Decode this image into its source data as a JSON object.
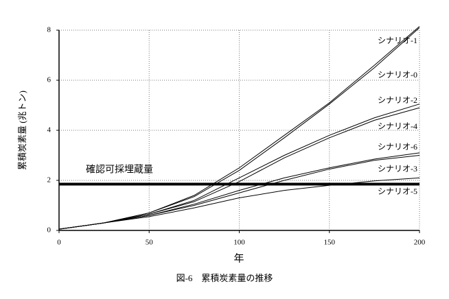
{
  "chart_data": {
    "type": "line",
    "caption": "図-6　累積炭素量の推移",
    "x_label": "年",
    "y_label": "累積炭素量 (兆トン)",
    "x": [
      0,
      25,
      50,
      75,
      100,
      125,
      150,
      175,
      200
    ],
    "series": [
      {
        "name": "シナリオ-1",
        "color": "#000000",
        "values": [
          0.05,
          0.3,
          0.7,
          1.4,
          2.5,
          3.8,
          5.1,
          6.6,
          8.15
        ]
      },
      {
        "name": "シナリオ-0",
        "color": "#000000",
        "values": [
          0.05,
          0.3,
          0.7,
          1.35,
          2.4,
          3.7,
          5.05,
          6.5,
          8.1
        ]
      },
      {
        "name": "シナリオ-2",
        "color": "#000000",
        "values": [
          0.05,
          0.3,
          0.65,
          1.2,
          2.1,
          3.0,
          3.8,
          4.5,
          5.05
        ]
      },
      {
        "name": "シナリオ-4",
        "color": "#000000",
        "values": [
          0.05,
          0.3,
          0.65,
          1.15,
          1.95,
          2.9,
          3.7,
          4.4,
          4.9
        ]
      },
      {
        "name": "シナリオ-6",
        "color": "#000000",
        "values": [
          0.05,
          0.3,
          0.6,
          1.05,
          1.6,
          2.1,
          2.5,
          2.85,
          3.1
        ]
      },
      {
        "name": "シナリオ-3",
        "color": "#000000",
        "values": [
          0.05,
          0.3,
          0.6,
          1.0,
          1.5,
          2.0,
          2.45,
          2.8,
          3.0
        ]
      },
      {
        "name": "シナリオ-5",
        "color": "#000000",
        "values": [
          0.05,
          0.3,
          0.55,
          0.9,
          1.3,
          1.6,
          1.8,
          1.98,
          2.1
        ]
      }
    ],
    "reference_lines": [
      {
        "label": "確認可採埋蔵量",
        "value": 1.85
      }
    ],
    "xlim": [
      0,
      200
    ],
    "xticks": [
      0,
      50,
      100,
      150,
      200
    ],
    "ylim": [
      0,
      8
    ],
    "yticks": [
      0,
      2,
      4,
      6,
      8
    ],
    "grid": true
  }
}
